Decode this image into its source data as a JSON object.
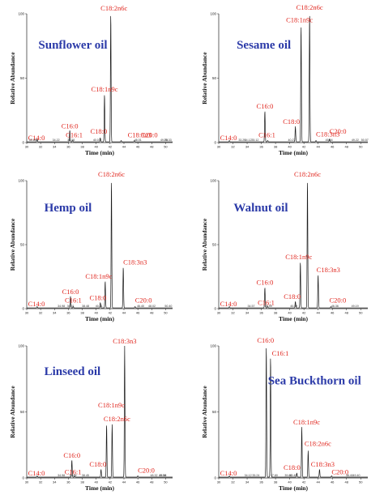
{
  "chart_data": [
    {
      "type": "line",
      "title": "Sunflower oil",
      "xlabel": "Time (min)",
      "ylabel": "Relative Abundance",
      "xlim": [
        30,
        51
      ],
      "ylim": [
        0,
        100
      ],
      "x_ticks": [
        "30",
        "32",
        "34",
        "36",
        "38",
        "40",
        "42",
        "44",
        "46",
        "48",
        "50"
      ],
      "y_ticks": [
        "0",
        "50",
        "100"
      ],
      "peaks": [
        {
          "label": "C14:0",
          "x": 31.5,
          "y": 2
        },
        {
          "label": "C16:0",
          "x": 36.2,
          "y": 9
        },
        {
          "label": "C16:1",
          "x": 36.6,
          "y": 1
        },
        {
          "label": "C18:0",
          "x": 40.6,
          "y": 3
        },
        {
          "label": "C18:1n9c",
          "x": 41.2,
          "y": 37
        },
        {
          "label": "C18:2n6c",
          "x": 42.1,
          "y": 100
        },
        {
          "label": "C18:3n3",
          "x": 43.6,
          "y": 1
        },
        {
          "label": "C20:0",
          "x": 45.5,
          "y": 1
        }
      ],
      "rt_labels": [
        "30.85",
        "34.22",
        "36.38",
        "40.07",
        "46.01",
        "49.78",
        "50.33"
      ]
    },
    {
      "type": "line",
      "title": "Sesame oil",
      "xlabel": "Time (min)",
      "ylabel": "Relative Abundance",
      "xlim": [
        30,
        51
      ],
      "ylim": [
        0,
        100
      ],
      "x_ticks": [
        "30",
        "32",
        "34",
        "36",
        "38",
        "40",
        "42",
        "44",
        "46",
        "48",
        "50"
      ],
      "y_ticks": [
        "0",
        "50",
        "100"
      ],
      "peaks": [
        {
          "label": "C14:0",
          "x": 31.5,
          "y": 1
        },
        {
          "label": "C16:0",
          "x": 36.5,
          "y": 24
        },
        {
          "label": "C16:1",
          "x": 36.9,
          "y": 1
        },
        {
          "label": "C18:0",
          "x": 40.8,
          "y": 12
        },
        {
          "label": "C18:1n9c",
          "x": 41.6,
          "y": 91
        },
        {
          "label": "C18:2n6c",
          "x": 42.8,
          "y": 100
        },
        {
          "label": "C18:3n3",
          "x": 43.7,
          "y": 1
        },
        {
          "label": "C20:0",
          "x": 45.6,
          "y": 2
        }
      ],
      "rt_labels": [
        "33.29",
        "34.12",
        "35.12",
        "40.27",
        "45.54",
        "49.22",
        "50.57"
      ]
    },
    {
      "type": "line",
      "title": "Hemp oil",
      "xlabel": "Time (min)",
      "ylabel": "Relative Abundance",
      "xlim": [
        30,
        51
      ],
      "ylim": [
        0,
        100
      ],
      "x_ticks": [
        "30",
        "32",
        "34",
        "36",
        "38",
        "40",
        "42",
        "44",
        "46",
        "48",
        "50"
      ],
      "y_ticks": [
        "0",
        "50",
        "100"
      ],
      "peaks": [
        {
          "label": "C14:0",
          "x": 31.5,
          "y": 1
        },
        {
          "label": "C16:0",
          "x": 36.3,
          "y": 9
        },
        {
          "label": "C16:1",
          "x": 36.7,
          "y": 1
        },
        {
          "label": "C18:0",
          "x": 40.6,
          "y": 4
        },
        {
          "label": "C18:1n9c",
          "x": 41.3,
          "y": 21
        },
        {
          "label": "C18:2n6c",
          "x": 42.2,
          "y": 100
        },
        {
          "label": "C18:3n3",
          "x": 43.9,
          "y": 32
        },
        {
          "label": "C20:0",
          "x": 45.6,
          "y": 1
        }
      ],
      "rt_labels": [
        "34.98",
        "36.31",
        "38.48",
        "40.41",
        "46.40",
        "48.02",
        "50.40"
      ]
    },
    {
      "type": "line",
      "title": "Walnut oil",
      "xlabel": "Time (min)",
      "ylabel": "Relative Abundance",
      "xlim": [
        30,
        51
      ],
      "ylim": [
        0,
        100
      ],
      "x_ticks": [
        "30",
        "32",
        "34",
        "36",
        "38",
        "40",
        "42",
        "44",
        "46",
        "48",
        "50"
      ],
      "y_ticks": [
        "0",
        "50",
        "100"
      ],
      "peaks": [
        {
          "label": "C14:0",
          "x": 31.5,
          "y": 1
        },
        {
          "label": "C16:0",
          "x": 36.5,
          "y": 16
        },
        {
          "label": "C16:1",
          "x": 36.9,
          "y": 1
        },
        {
          "label": "C18:0",
          "x": 40.8,
          "y": 5
        },
        {
          "label": "C18:1n9c",
          "x": 41.5,
          "y": 36
        },
        {
          "label": "C18:2n6c",
          "x": 42.5,
          "y": 100
        },
        {
          "label": "C18:3n3",
          "x": 44.0,
          "y": 26
        },
        {
          "label": "C20:0",
          "x": 45.8,
          "y": 1
        }
      ],
      "rt_labels": [
        "34.57",
        "36.99",
        "40.59",
        "46.36",
        "49.19"
      ]
    },
    {
      "type": "line",
      "title": "Linseed oil",
      "xlabel": "Time (min)",
      "ylabel": "Relative Abundance",
      "xlim": [
        30,
        51
      ],
      "ylim": [
        0,
        100
      ],
      "x_ticks": [
        "30",
        "32",
        "34",
        "36",
        "38",
        "40",
        "42",
        "44",
        "46",
        "48",
        "50"
      ],
      "y_ticks": [
        "0",
        "50",
        "100"
      ],
      "peaks": [
        {
          "label": "C14:0",
          "x": 31.5,
          "y": 1
        },
        {
          "label": "C16:0",
          "x": 36.5,
          "y": 13
        },
        {
          "label": "C16:1",
          "x": 36.9,
          "y": 1
        },
        {
          "label": "C18:0",
          "x": 40.7,
          "y": 6
        },
        {
          "label": "C18:1n9c",
          "x": 41.5,
          "y": 40
        },
        {
          "label": "C18:2n6c",
          "x": 42.3,
          "y": 40
        },
        {
          "label": "C18:3n3",
          "x": 44.1,
          "y": 100
        },
        {
          "label": "C20:0",
          "x": 46.0,
          "y": 1
        }
      ],
      "rt_labels": [
        "34.98",
        "36.65",
        "38.45",
        "48.32",
        "49.56",
        "49.58"
      ]
    },
    {
      "type": "line",
      "title": "Sea Buckthorn oil",
      "xlabel": "Time (min)",
      "ylabel": "Relative Abundance",
      "xlim": [
        30,
        51
      ],
      "ylim": [
        0,
        100
      ],
      "x_ticks": [
        "30",
        "32",
        "34",
        "36",
        "38",
        "40",
        "42",
        "44",
        "46",
        "48",
        "50"
      ],
      "y_ticks": [
        "0",
        "50",
        "100"
      ],
      "peaks": [
        {
          "label": "C14:0",
          "x": 31.5,
          "y": 1
        },
        {
          "label": "C16:0",
          "x": 36.7,
          "y": 100
        },
        {
          "label": "C16:1",
          "x": 37.3,
          "y": 92
        },
        {
          "label": "C18:0",
          "x": 41.0,
          "y": 3
        },
        {
          "label": "C18:1n9c",
          "x": 41.7,
          "y": 38
        },
        {
          "label": "C18:2n6c",
          "x": 42.6,
          "y": 20
        },
        {
          "label": "C18:3n3",
          "x": 44.2,
          "y": 6
        },
        {
          "label": "C20:0",
          "x": 45.9,
          "y": 1
        }
      ],
      "rt_labels": [
        "34.12",
        "35.24",
        "37.80",
        "39.80",
        "40.49",
        "48.40",
        "49.40"
      ]
    }
  ]
}
